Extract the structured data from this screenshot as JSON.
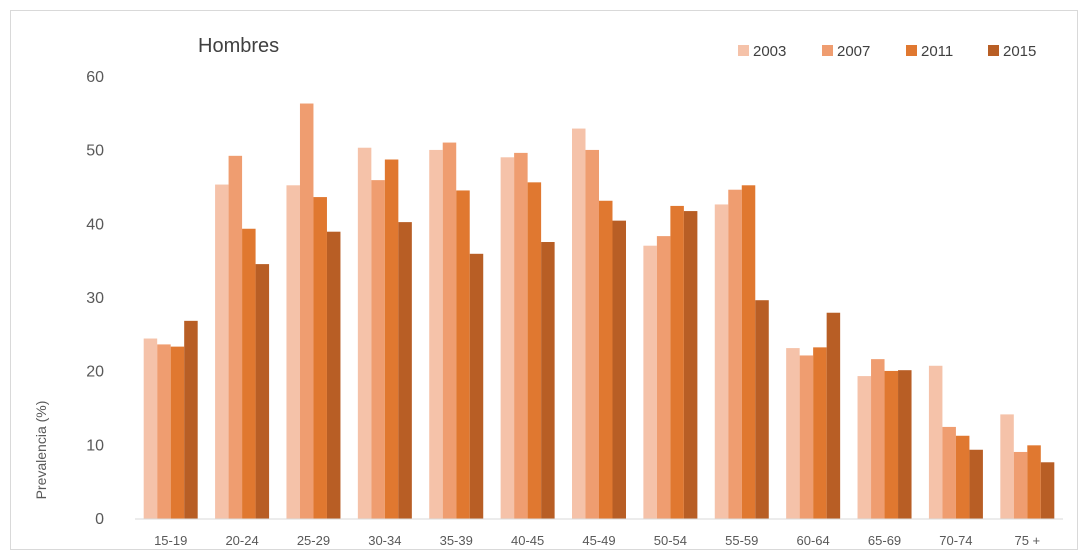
{
  "chart_data": {
    "type": "bar",
    "title": "Hombres",
    "ylabel": "Prevalencia (%)",
    "xlabel": "",
    "ylim": [
      0,
      60
    ],
    "yticks": [
      0,
      10,
      20,
      30,
      40,
      50,
      60
    ],
    "grid": false,
    "legend_position": "top-right",
    "categories": [
      "15-19",
      "20-24",
      "25-29",
      "30-34",
      "35-39",
      "40-45",
      "45-49",
      "50-54",
      "55-59",
      "60-64",
      "65-69",
      "70-74",
      "75 +"
    ],
    "series": [
      {
        "name": "2003",
        "color": "#f5c2a9",
        "values": [
          24.5,
          45.4,
          45.3,
          50.4,
          50.1,
          49.1,
          53.0,
          37.1,
          42.7,
          23.2,
          19.4,
          20.8,
          14.2
        ]
      },
      {
        "name": "2007",
        "color": "#ef9d70",
        "values": [
          23.7,
          49.3,
          56.4,
          46.0,
          51.1,
          49.7,
          50.1,
          38.4,
          44.7,
          22.2,
          21.7,
          12.5,
          9.1
        ]
      },
      {
        "name": "2011",
        "color": "#e07830",
        "values": [
          23.4,
          39.4,
          43.7,
          48.8,
          44.6,
          45.7,
          43.2,
          42.5,
          45.3,
          23.3,
          20.1,
          11.3,
          10.0
        ]
      },
      {
        "name": "2015",
        "color": "#b85e25",
        "values": [
          26.9,
          34.6,
          39.0,
          40.3,
          36.0,
          37.6,
          40.5,
          41.8,
          29.7,
          28.0,
          20.2,
          9.4,
          7.7
        ]
      }
    ]
  }
}
